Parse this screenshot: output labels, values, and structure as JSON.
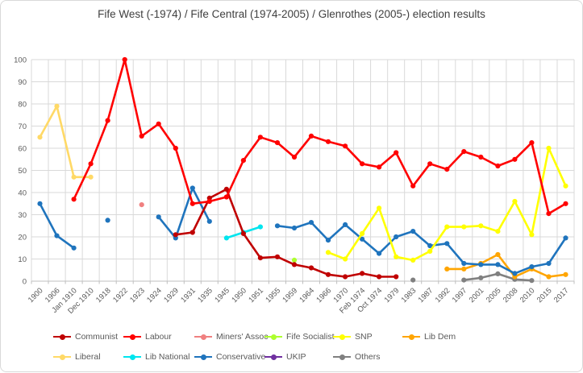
{
  "title": "Fife West (-1974) / Fife Central (1974-2005) / Glenrothes (2005-) election results",
  "chart_data": {
    "type": "line",
    "title": "Fife West (-1974) / Fife Central (1974-2005) / Glenrothes (2005-) election results",
    "xlabel": "",
    "ylabel": "",
    "grid": true,
    "legend_position": "bottom",
    "y_axis": {
      "min": 0,
      "max": 100,
      "step": 10
    },
    "y_ticks": [
      0,
      10,
      20,
      30,
      40,
      50,
      60,
      70,
      80,
      90,
      100
    ],
    "x_axis": {
      "labels_rotation": -45
    },
    "categories": [
      "1900",
      "1906",
      "Jan 1910",
      "Dec 1910",
      "1918",
      "1922",
      "1923",
      "1924",
      "1929",
      "1931",
      "1935",
      "1945",
      "1950",
      "1951",
      "1955",
      "1959",
      "1964",
      "1966",
      "1970",
      "Feb 1974",
      "Oct 1974",
      "1979",
      "1983",
      "1987",
      "1992",
      "1997",
      "2001",
      "2005",
      "2008",
      "2010",
      "2015",
      "2017"
    ],
    "series": [
      {
        "name": "Communist",
        "color": "#C00000",
        "legend": {
          "row": 0,
          "col": 0
        },
        "values": [
          null,
          null,
          null,
          null,
          null,
          null,
          null,
          null,
          21,
          22,
          37.5,
          41.5,
          21.5,
          10.5,
          11,
          7.5,
          6,
          3,
          2,
          3.5,
          2,
          2,
          null,
          null,
          null,
          null,
          null,
          null,
          null,
          null,
          null,
          null
        ]
      },
      {
        "name": "Labour",
        "color": "#FF0000",
        "legend": {
          "row": 0,
          "col": 1
        },
        "values": [
          null,
          null,
          37,
          53,
          72.5,
          100,
          65.5,
          71,
          60,
          35,
          36,
          38,
          54.5,
          65,
          62.5,
          56,
          65.5,
          63,
          61,
          53,
          51.5,
          58,
          43,
          53,
          50.5,
          58.5,
          56,
          52,
          55,
          62.5,
          30.5,
          35
        ]
      },
      {
        "name": "Miners' Assoc",
        "color": "#F08080",
        "legend": {
          "row": 0,
          "col": 2
        },
        "values": [
          null,
          null,
          null,
          null,
          null,
          null,
          34.5,
          null,
          null,
          null,
          null,
          null,
          null,
          null,
          null,
          null,
          null,
          null,
          null,
          null,
          null,
          null,
          null,
          null,
          null,
          null,
          null,
          null,
          null,
          null,
          null,
          null
        ]
      },
      {
        "name": "Fife Socialist",
        "color": "#ADFF2F",
        "legend": {
          "row": 0,
          "col": 3
        },
        "values": [
          null,
          null,
          null,
          null,
          null,
          null,
          null,
          null,
          null,
          null,
          null,
          null,
          null,
          null,
          null,
          9.5,
          null,
          null,
          null,
          null,
          null,
          null,
          null,
          null,
          null,
          null,
          null,
          null,
          null,
          null,
          null,
          null
        ]
      },
      {
        "name": "SNP",
        "color": "#FFFF00",
        "legend": {
          "row": 0,
          "col": 4
        },
        "values": [
          null,
          null,
          null,
          null,
          null,
          null,
          null,
          null,
          null,
          null,
          null,
          null,
          null,
          null,
          null,
          null,
          null,
          13,
          10,
          21.5,
          33,
          11,
          9.5,
          13.5,
          24.5,
          24.5,
          25,
          22.5,
          36,
          21,
          60,
          43
        ]
      },
      {
        "name": "Lib Dem",
        "color": "#FFA500",
        "legend": {
          "row": 0,
          "col": 5
        },
        "values": [
          null,
          null,
          null,
          null,
          null,
          null,
          null,
          null,
          null,
          null,
          null,
          null,
          null,
          null,
          null,
          null,
          null,
          null,
          null,
          null,
          null,
          null,
          null,
          null,
          5.5,
          5.5,
          8,
          12,
          2,
          5.5,
          2,
          3
        ]
      },
      {
        "name": "Liberal",
        "color": "#FFD966",
        "legend": {
          "row": 1,
          "col": 0
        },
        "values": [
          65,
          79,
          47,
          47,
          null,
          null,
          null,
          null,
          null,
          null,
          null,
          null,
          null,
          null,
          null,
          null,
          null,
          null,
          null,
          null,
          null,
          null,
          null,
          null,
          null,
          null,
          null,
          null,
          null,
          null,
          null,
          null
        ]
      },
      {
        "name": "Lib National",
        "color": "#00E5EE",
        "legend": {
          "row": 1,
          "col": 1
        },
        "values": [
          null,
          null,
          null,
          null,
          null,
          null,
          null,
          null,
          null,
          null,
          null,
          19.5,
          22,
          24.5,
          null,
          null,
          null,
          null,
          null,
          null,
          null,
          null,
          null,
          null,
          null,
          null,
          null,
          null,
          null,
          null,
          null,
          null
        ]
      },
      {
        "name": "Conservative",
        "color": "#1F74BD",
        "legend": {
          "row": 1,
          "col": 2
        },
        "values": [
          35,
          20.5,
          15,
          null,
          27.5,
          null,
          null,
          29,
          19.5,
          42,
          27,
          null,
          null,
          null,
          25,
          24,
          26.5,
          18.5,
          25.5,
          19,
          12.5,
          20,
          22.5,
          16,
          17,
          8,
          7.5,
          7.5,
          3.5,
          6.5,
          8,
          19.5
        ]
      },
      {
        "name": "UKIP",
        "color": "#7030A0",
        "legend": {
          "row": 1,
          "col": 3
        },
        "values": [
          null,
          null,
          null,
          null,
          null,
          null,
          null,
          null,
          null,
          null,
          null,
          null,
          null,
          null,
          null,
          null,
          null,
          null,
          null,
          null,
          null,
          null,
          null,
          null,
          null,
          null,
          null,
          null,
          null,
          null,
          null,
          null
        ]
      },
      {
        "name": "Others",
        "color": "#808080",
        "legend": {
          "row": 1,
          "col": 4
        },
        "values": [
          null,
          null,
          null,
          null,
          null,
          null,
          null,
          null,
          null,
          null,
          null,
          null,
          null,
          null,
          null,
          null,
          null,
          null,
          null,
          null,
          null,
          null,
          0.5,
          null,
          null,
          0.5,
          1.5,
          3.3,
          0.8,
          0.3,
          null,
          null
        ]
      }
    ]
  }
}
